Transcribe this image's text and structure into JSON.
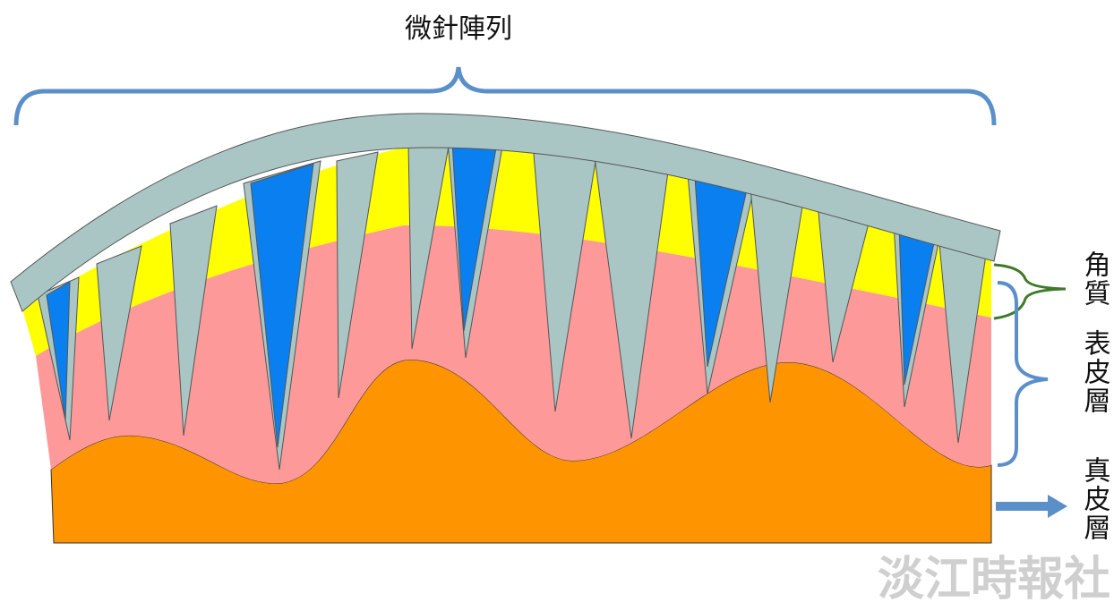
{
  "title": "微針陣列",
  "labels": {
    "stratum_corneum": "角質",
    "epidermis": "表皮層",
    "dermis": "真皮層"
  },
  "watermark": "淡江時報社"
}
